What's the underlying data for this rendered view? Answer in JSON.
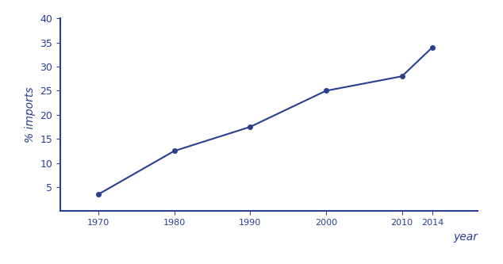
{
  "chart_data": {
    "type": "line",
    "x_label": "year",
    "y_label": "% imports",
    "x": [
      1970,
      1980,
      1990,
      2000,
      2010,
      2014
    ],
    "values": [
      3.5,
      12.5,
      17.5,
      25,
      28,
      34
    ],
    "color": "#2a3f8f",
    "marker": "o",
    "line_style": "solid",
    "xlim": [
      1965,
      2020
    ],
    "xticks": [
      1970,
      1980,
      1990,
      2000,
      2010,
      2014
    ],
    "ylim": [
      0,
      40
    ],
    "yticks": [
      5,
      10,
      15,
      20,
      25,
      30,
      35,
      40
    ],
    "grid": false
  }
}
